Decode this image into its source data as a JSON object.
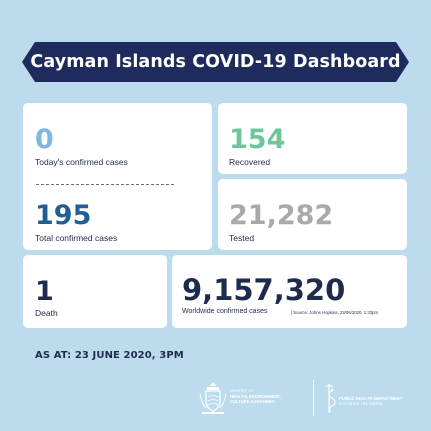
{
  "header": {
    "title": "Cayman Islands COVID-19 Dashboard"
  },
  "stats": {
    "today_confirmed": {
      "value": "0",
      "label": "Today's confirmed cases"
    },
    "total_confirmed": {
      "value": "195",
      "label": "Total confirmed cases"
    },
    "recovered": {
      "value": "154",
      "label": "Recovered"
    },
    "tested": {
      "value": "21,282",
      "label": "Tested"
    },
    "death": {
      "value": "1",
      "label": "Death"
    },
    "worldwide": {
      "value": "9,157,320",
      "label": "Worldwide confirmed cases",
      "source": "| Source: Johns Hopkins, 23/06/2020, 1:33pm"
    }
  },
  "footer": {
    "as_at": "AS AT: 23 JUNE 2020, 3PM",
    "ministry": {
      "line1": "MINISTRY OF",
      "line2": "HEALTH, ENVIRONMENT,",
      "line3": "CULTURE & HOUSING"
    },
    "phd": {
      "line1": "PUBLIC HEALTH DEPARTMENT",
      "line2": "CAYMAN ISLANDS"
    }
  },
  "colors": {
    "background": "#bcdcee",
    "banner": "#1f2b5c",
    "today": "#7fb8dc",
    "total": "#1f5f93",
    "recovered": "#6ec59a",
    "tested": "#a9a9a9",
    "dark": "#1f2b4d"
  },
  "icons": {
    "ministry_logo": "coat-of-arms-icon",
    "phd_logo": "caduceus-icon"
  }
}
